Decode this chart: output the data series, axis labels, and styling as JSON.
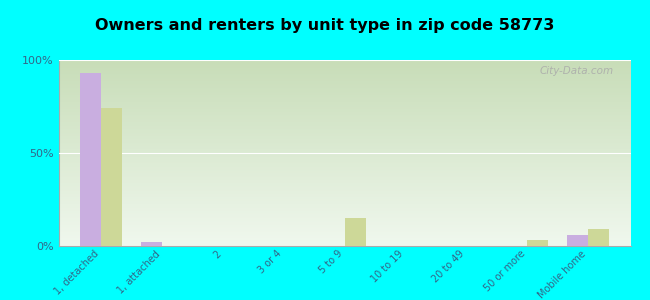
{
  "title": "Owners and renters by unit type in zip code 58773",
  "categories": [
    "1, detached",
    "1, attached",
    "2",
    "3 or 4",
    "5 to 9",
    "10 to 19",
    "20 to 49",
    "50 or more",
    "Mobile home"
  ],
  "owner_values": [
    93,
    2,
    0,
    0,
    0,
    0,
    0,
    0,
    6
  ],
  "renter_values": [
    74,
    0,
    0,
    0,
    15,
    0,
    0,
    3,
    9
  ],
  "owner_color": "#c9aee0",
  "renter_color": "#cdd898",
  "background_color": "#00ffff",
  "plot_bg_top": "#c8ddb8",
  "plot_bg_bottom": "#f0f8ee",
  "ylim": [
    0,
    100
  ],
  "yticks": [
    0,
    50,
    100
  ],
  "bar_width": 0.35,
  "watermark": "City-Data.com",
  "tick_color": "#336688"
}
